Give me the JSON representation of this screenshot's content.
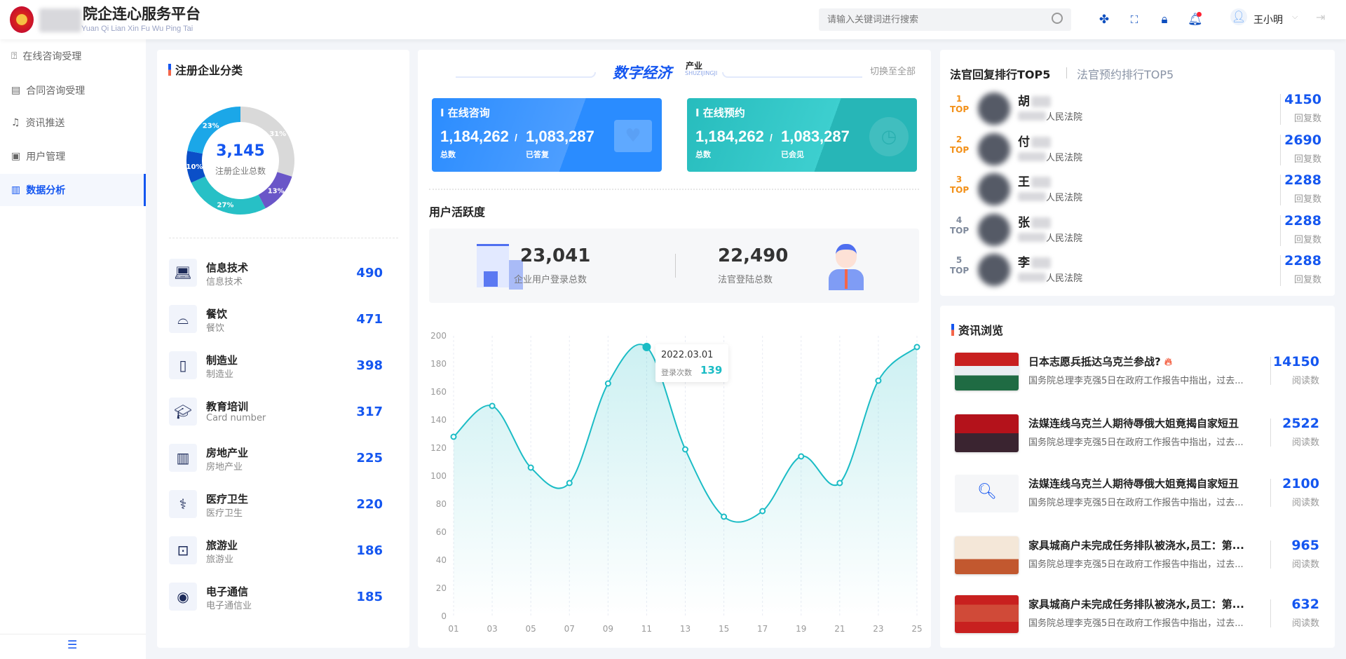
{
  "header": {
    "brand_title": "院企连心服务平台",
    "brand_subtitle": "Yuan Qi Lian Xin Fu Wu Ping Tai",
    "search_placeholder": "请输入关键词进行搜索",
    "user_name": "王小明",
    "icons": [
      "apps-icon",
      "fullscreen-icon",
      "lock-icon",
      "bell-icon",
      "avatar",
      "logout-icon"
    ]
  },
  "sidebar": {
    "items": [
      {
        "label": "在线咨询受理",
        "icon": "question-icon"
      },
      {
        "label": "合同咨询受理",
        "icon": "document-icon"
      },
      {
        "label": "资讯推送",
        "icon": "bell-icon"
      },
      {
        "label": "用户管理",
        "icon": "user-card-icon"
      },
      {
        "label": "数据分析",
        "icon": "chart-file-icon",
        "active": true
      }
    ]
  },
  "categories": {
    "title": "注册企业分类",
    "total": "3,145",
    "total_label": "注册企业总数",
    "donut": [
      {
        "label": "31%",
        "value": 31,
        "color": "#d9d9d9"
      },
      {
        "label": "13%",
        "value": 13,
        "color": "#6a56c8"
      },
      {
        "label": "27%",
        "value": 27,
        "color": "#27c0c6"
      },
      {
        "label": "10%",
        "value": 10,
        "color": "#0b4fc8"
      },
      {
        "label": "23%",
        "value": 23,
        "color": "#1ba7e8"
      }
    ],
    "items": [
      {
        "name": "信息技术",
        "sub": "信息技术",
        "value": "490",
        "icon": "laptop-icon"
      },
      {
        "name": "餐饮",
        "sub": "餐饮",
        "value": "471",
        "icon": "dish-cover-icon"
      },
      {
        "name": "制造业",
        "sub": "制造业",
        "value": "398",
        "icon": "roll-icon"
      },
      {
        "name": "教育培训",
        "sub": "Card number",
        "value": "317",
        "icon": "graduation-cap-icon"
      },
      {
        "name": "房地产业",
        "sub": "房地产业",
        "value": "225",
        "icon": "building-icon"
      },
      {
        "name": "医疗卫生",
        "sub": "医疗卫生",
        "value": "220",
        "icon": "stethoscope-icon"
      },
      {
        "name": "旅游业",
        "sub": "旅游业",
        "value": "186",
        "icon": "luggage-icon"
      },
      {
        "name": "电子通信",
        "sub": "电子通信业",
        "value": "185",
        "icon": "signal-icon"
      }
    ]
  },
  "middle": {
    "banner_title": "数字经济",
    "banner_tag": "产业",
    "banner_pinyin": "SHUZIJINGJI",
    "switch_all": "切换至全部",
    "consult": {
      "title": "I 在线咨询",
      "total": "1,184,262",
      "total_label": "总数",
      "done": "1,083,287",
      "done_label": "已答复",
      "color": "#2a8cff"
    },
    "appoint": {
      "title": "I 在线预约",
      "total": "1,184,262",
      "total_label": "总数",
      "done": "1,083,287",
      "done_label": "已会见",
      "color": "#27bcbd"
    },
    "activity_title": "用户活跃度",
    "enterprise_logins": "23,041",
    "enterprise_logins_label": "企业用户登录总数",
    "judge_logins": "22,490",
    "judge_logins_label": "法官登陆总数",
    "slash": "/"
  },
  "chart_data": {
    "type": "area",
    "x": [
      "01",
      "03",
      "05",
      "07",
      "09",
      "11",
      "13",
      "15",
      "17",
      "19",
      "21",
      "23",
      "25"
    ],
    "values": [
      128,
      150,
      106,
      95,
      166,
      192,
      119,
      71,
      75,
      114,
      95,
      168,
      192
    ],
    "ylim": [
      0,
      200
    ],
    "yticks": [
      0,
      20,
      40,
      60,
      80,
      100,
      120,
      140,
      160,
      180,
      200
    ],
    "grid": "vertical-dashed",
    "color": "#1bbcc5",
    "tooltip": {
      "date": "2022.03.01",
      "label": "登录次数",
      "value": "139"
    }
  },
  "ranking": {
    "tab_active": "法官回复排行TOP5",
    "tab_inactive": "法官预约排行TOP5",
    "top_label": "TOP",
    "court_suffix": "人民法院",
    "value_label": "回复数",
    "rows": [
      {
        "rank": "1",
        "surname": "胡",
        "value": "4150"
      },
      {
        "rank": "2",
        "surname": "付",
        "value": "2690"
      },
      {
        "rank": "3",
        "surname": "王",
        "value": "2288"
      },
      {
        "rank": "4",
        "surname": "张",
        "value": "2288"
      },
      {
        "rank": "5",
        "surname": "李",
        "value": "2288"
      }
    ]
  },
  "news": {
    "title": "资讯浏览",
    "count_label": "阅读数",
    "items": [
      {
        "title": "日本志愿兵抵达乌克兰参战?",
        "hot": true,
        "desc": "国务院总理李克强5日在政府工作报告中指出，过去...",
        "count": "14150"
      },
      {
        "title": "法媒连线乌克兰人期待辱俄大姐竟揭自家短丑",
        "desc": "国务院总理李克强5日在政府工作报告中指出，过去...",
        "count": "2522"
      },
      {
        "title": "法媒连线乌克兰人期待辱俄大姐竟揭自家短丑",
        "desc": "国务院总理李克强5日在政府工作报告中指出，过去...",
        "count": "2100"
      },
      {
        "title": "家具城商户未完成任务排队被浇水,员工：第...",
        "desc": "国务院总理李克强5日在政府工作报告中指出，过去...",
        "count": "965"
      },
      {
        "title": "家具城商户未完成任务排队被浇水,员工：第...",
        "desc": "国务院总理李克强5日在政府工作报告中指出，过去...",
        "count": "632"
      }
    ]
  }
}
